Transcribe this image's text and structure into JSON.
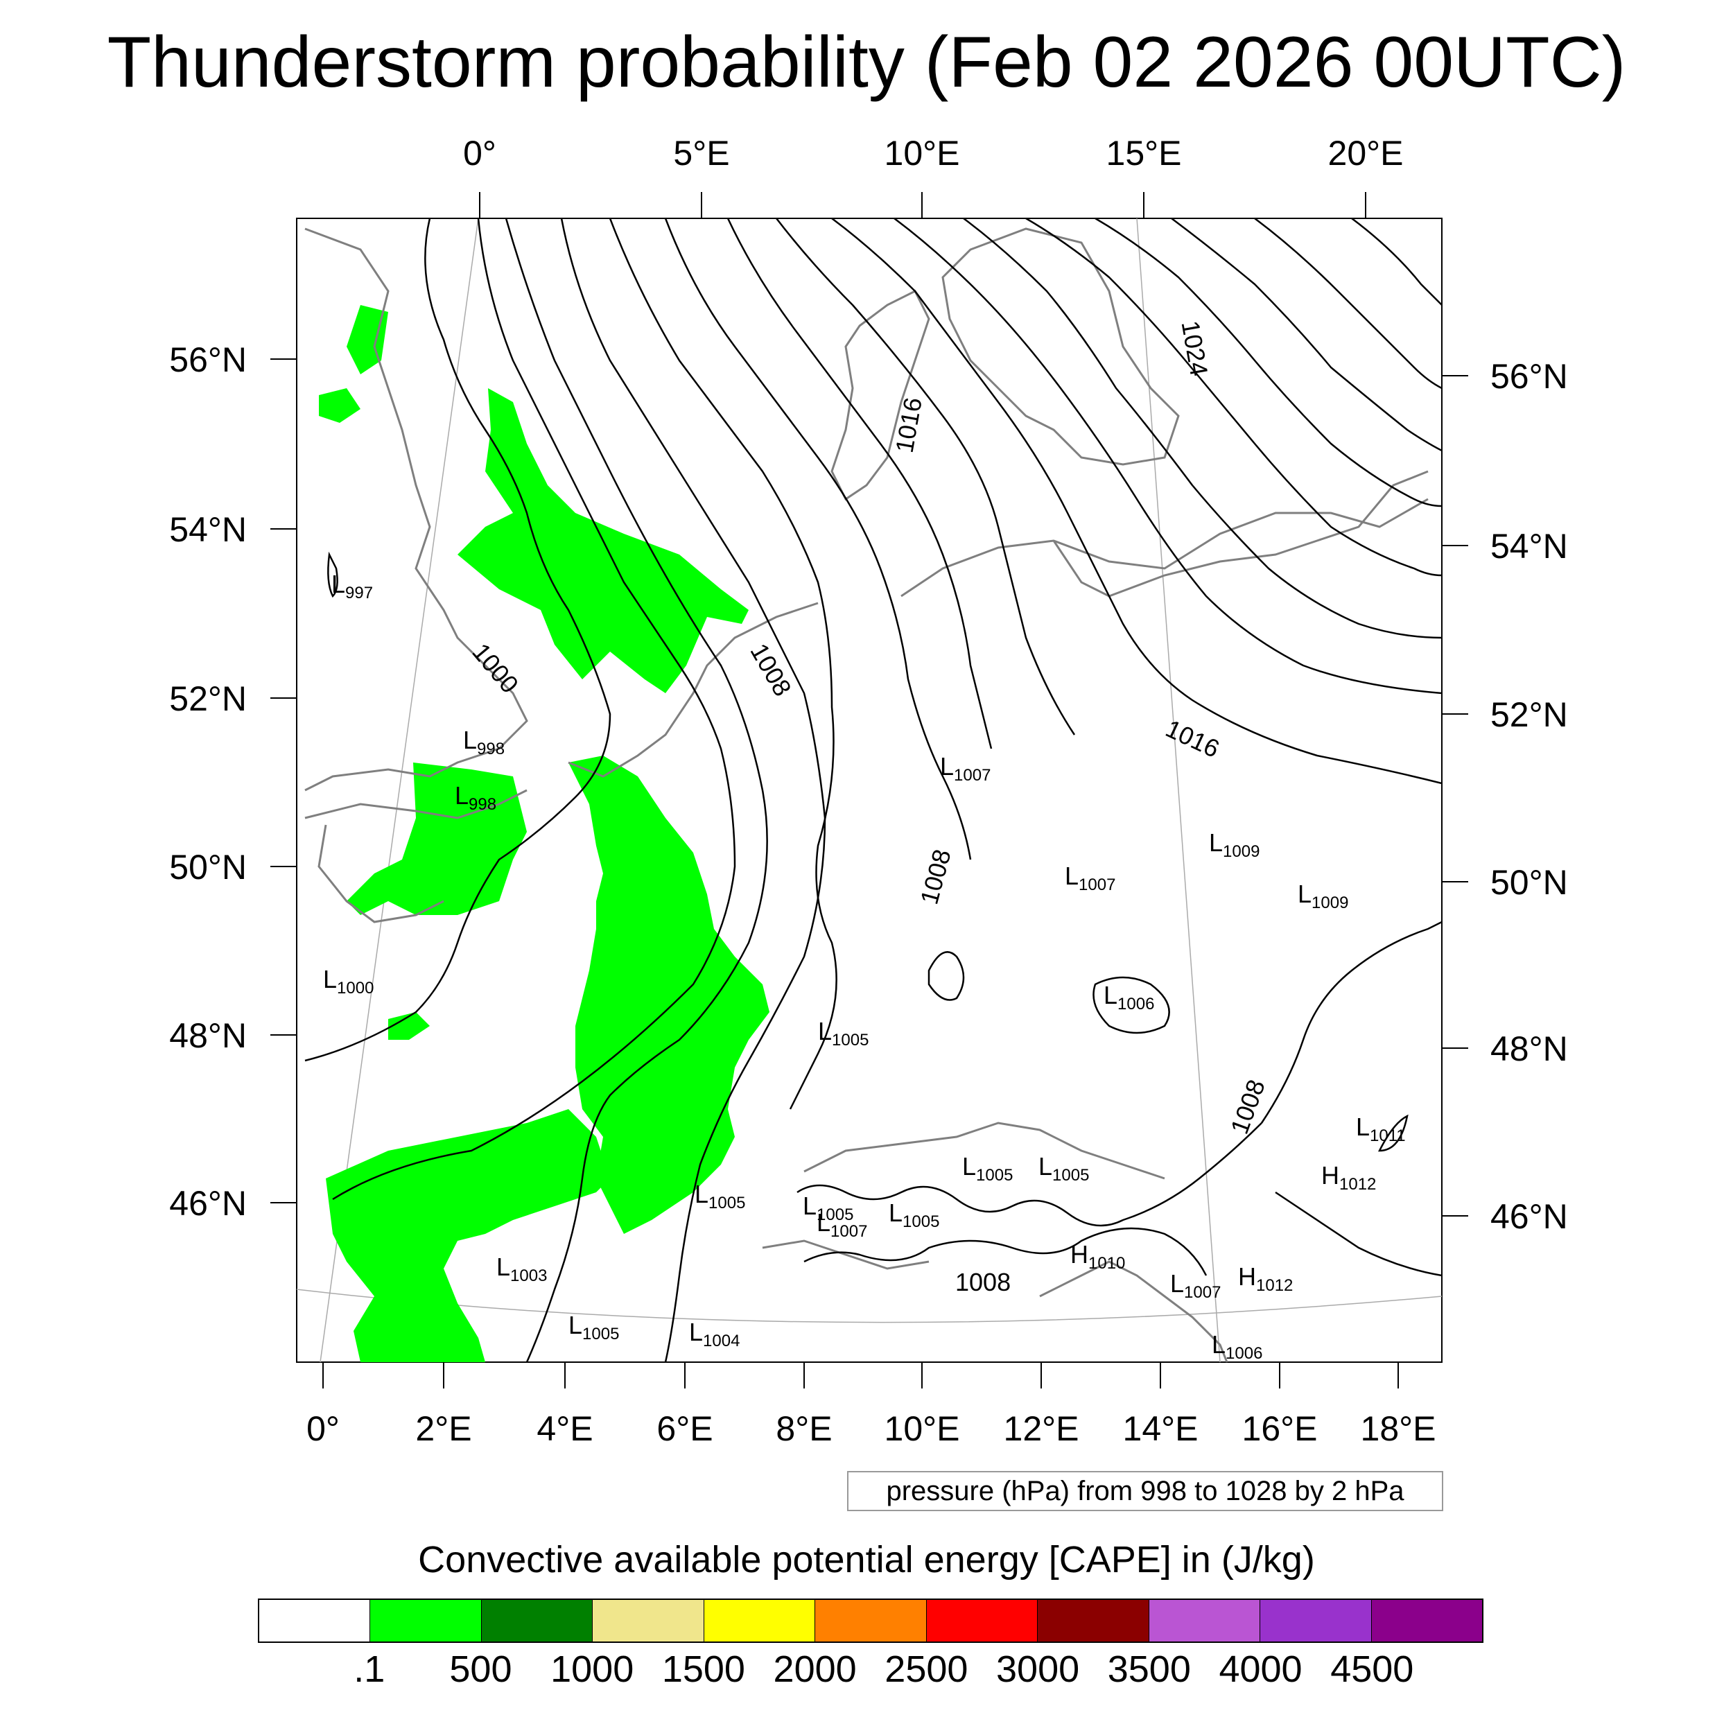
{
  "title": "Thunderstorm probability (Feb 02 2026 00UTC)",
  "axes": {
    "top_lon": [
      "0°",
      "5°E",
      "10°E",
      "15°E",
      "20°E"
    ],
    "bottom_lon": [
      "0°",
      "2°E",
      "4°E",
      "6°E",
      "8°E",
      "10°E",
      "12°E",
      "14°E",
      "16°E",
      "18°E"
    ],
    "left_lat": [
      "56°N",
      "54°N",
      "52°N",
      "50°N",
      "48°N",
      "46°N"
    ],
    "right_lat": [
      "56°N",
      "54°N",
      "52°N",
      "50°N",
      "48°N",
      "46°N"
    ]
  },
  "isobar_labels": [
    "1000",
    "1008",
    "1016",
    "1024",
    "1016",
    "1008",
    "1008",
    "1008"
  ],
  "pressure_centers": [
    {
      "letter": "L",
      "value": "997"
    },
    {
      "letter": "L",
      "value": "998"
    },
    {
      "letter": "L",
      "value": "998"
    },
    {
      "letter": "L",
      "value": "1000"
    },
    {
      "letter": "L",
      "value": "1003"
    },
    {
      "letter": "L",
      "value": "1005"
    },
    {
      "letter": "L",
      "value": "1004"
    },
    {
      "letter": "L",
      "value": "1005"
    },
    {
      "letter": "L",
      "value": "1005"
    },
    {
      "letter": "L",
      "value": "1005"
    },
    {
      "letter": "L",
      "value": "1005"
    },
    {
      "letter": "L",
      "value": "1005"
    },
    {
      "letter": "L",
      "value": "1005"
    },
    {
      "letter": "L",
      "value": "1007"
    },
    {
      "letter": "L",
      "value": "1007"
    },
    {
      "letter": "L",
      "value": "1007"
    },
    {
      "letter": "L",
      "value": "1006"
    },
    {
      "letter": "L",
      "value": "1009"
    },
    {
      "letter": "L",
      "value": "1009"
    },
    {
      "letter": "L",
      "value": "1011"
    },
    {
      "letter": "H",
      "value": "1010"
    },
    {
      "letter": "H",
      "value": "1012"
    },
    {
      "letter": "H",
      "value": "1012"
    },
    {
      "letter": "L",
      "value": "1007"
    },
    {
      "letter": "L",
      "value": "1006"
    }
  ],
  "pressure_note": "pressure (hPa) from 998 to 1028 by 2 hPa",
  "colorbar": {
    "title": "Convective available potential energy [CAPE] in (J/kg)",
    "colors": [
      "#ffffff",
      "#00ff00",
      "#008000",
      "#f0e68c",
      "#ffff00",
      "#ff8000",
      "#ff0000",
      "#8b0000",
      "#ba55d3",
      "#9932cc",
      "#8b008b"
    ],
    "labels": [
      ".1",
      "500",
      "1000",
      "1500",
      "2000",
      "2500",
      "3000",
      "3500",
      "4000",
      "4500"
    ]
  },
  "colors": {
    "cape_low": "#00ff00",
    "coast": "#7f7f7f",
    "isobar": "#000000"
  }
}
